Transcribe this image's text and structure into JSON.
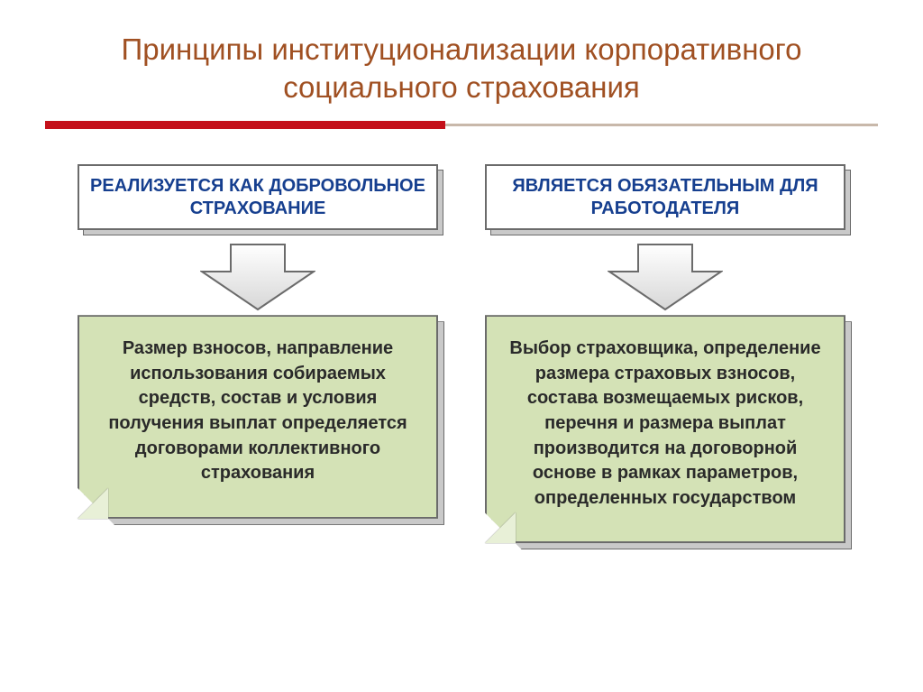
{
  "colors": {
    "title": "#a05022",
    "rule_bg": "#c8b8aa",
    "rule_fg": "#c4101a",
    "header_border": "#6b6b6b",
    "header_text": "#163f8f",
    "body_fill": "#d4e2b6",
    "body_border": "#6b6b6b",
    "body_text": "#2a2a2a",
    "fold_light": "#e8f0d7",
    "arrow_stroke": "#6b6b6b",
    "arrow_fill_a": "#ffffff",
    "arrow_fill_b": "#d7d7d7",
    "shadow_fill": "#c9c9c9"
  },
  "layout": {
    "rule_fg_width_pct": 48
  },
  "title": "Принципы институционализации корпоративного социального страхования",
  "left": {
    "header": "РЕАЛИЗУЕТСЯ КАК ДОБРОВОЛЬНОЕ СТРАХОВАНИЕ",
    "body": "Размер взносов, направление использования собираемых средств, состав и условия получения выплат определяется договорами коллективного страхования"
  },
  "right": {
    "header": "ЯВЛЯЕТСЯ ОБЯЗАТЕЛЬНЫМ ДЛЯ РАБОТОДАТЕЛЯ",
    "body": "Выбор страховщика, определение размера страховых взносов, состава возмещаемых рисков, перечня и размера выплат производится на договорной основе в рамках параметров, определенных государством"
  }
}
